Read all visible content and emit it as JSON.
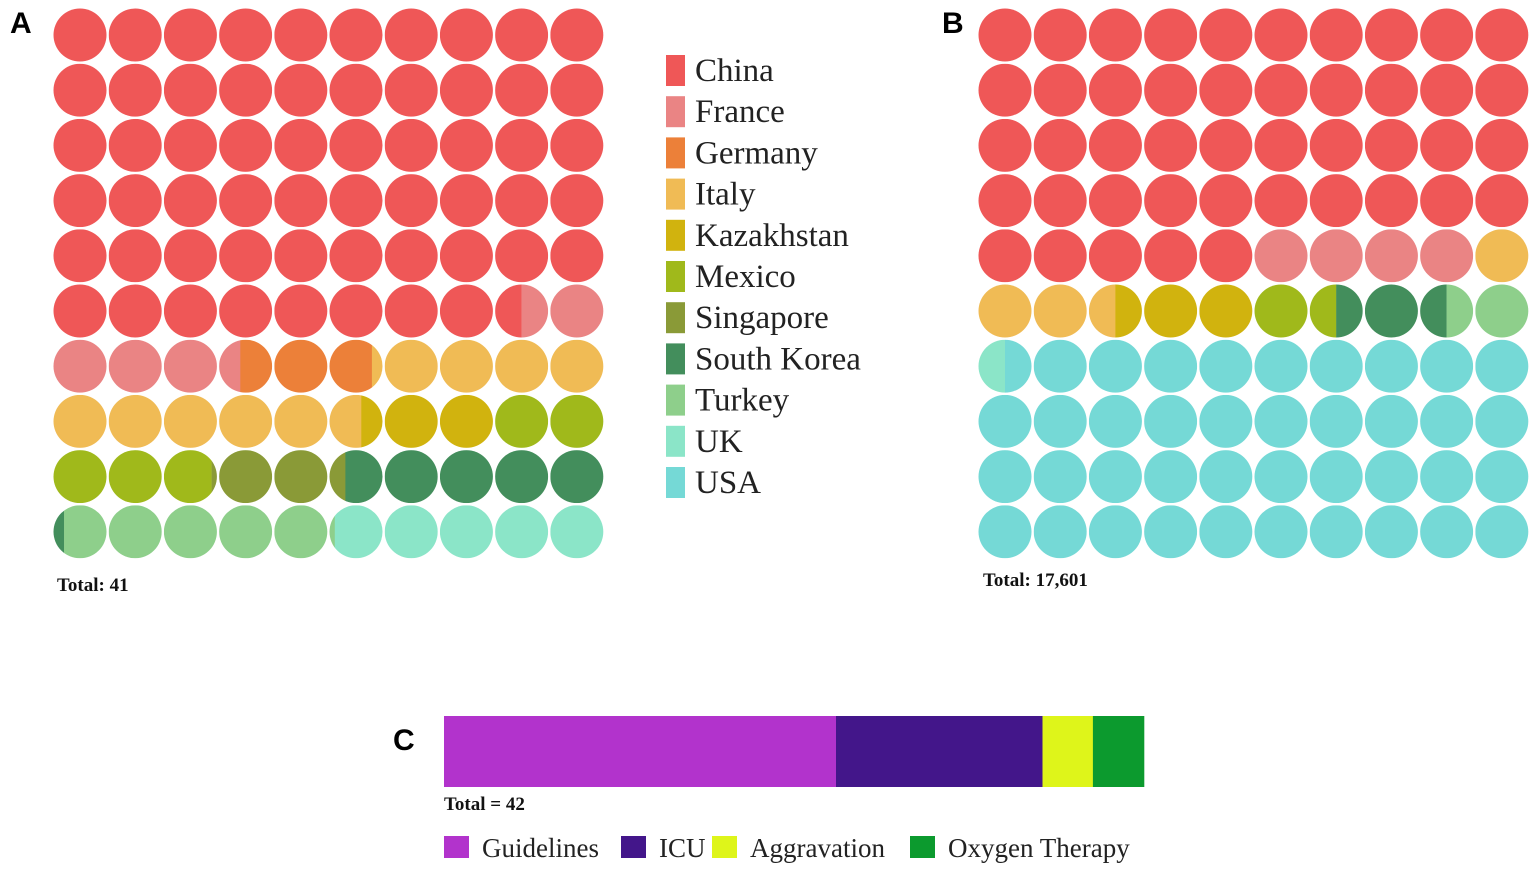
{
  "colors": {
    "China": "#ef5757",
    "France": "#ea8484",
    "Germany": "#ec8039",
    "Italy": "#f0bb55",
    "Kazakhstan": "#d1b30e",
    "Mexico": "#a0b91b",
    "Singapore": "#8a9a37",
    "South Korea": "#438e5c",
    "Turkey": "#8ecf8b",
    "UK": "#8be5c8",
    "USA": "#75d9d6"
  },
  "chart_data": [
    {
      "type": "waffle",
      "panel": "A",
      "total_label": "Total: 41",
      "grid": [
        10,
        10
      ],
      "unit": "percent",
      "categories": [
        "China",
        "France",
        "Germany",
        "Italy",
        "Kazakhstan",
        "Mexico",
        "Singapore",
        "South Korea",
        "Turkey",
        "UK",
        "USA"
      ],
      "values": [
        58.5,
        4.9,
        2.4,
        9.8,
        2.4,
        4.9,
        2.4,
        4.9,
        4.9,
        4.9,
        0
      ]
    },
    {
      "type": "waffle",
      "panel": "B",
      "total_label": "Total: 17,601",
      "grid": [
        10,
        10
      ],
      "unit": "percent",
      "categories": [
        "China",
        "France",
        "Germany",
        "Italy",
        "Kazakhstan",
        "Mexico",
        "Singapore",
        "South Korea",
        "Turkey",
        "UK",
        "USA"
      ],
      "values": [
        45,
        4,
        0,
        3.5,
        2.5,
        1.5,
        0,
        2,
        1.5,
        0.5,
        39.5
      ]
    },
    {
      "type": "bar",
      "stacked": true,
      "orientation": "horizontal",
      "panel": "C",
      "total_label": "Total = 42",
      "unit": "percent",
      "categories": [
        "Guidelines",
        "ICU",
        "Aggravation",
        "Oxygen Therapy"
      ],
      "values": [
        56,
        29.5,
        7.2,
        7.3
      ],
      "colors": [
        "#b233cc",
        "#43168a",
        "#def51a",
        "#0c9a2e"
      ]
    }
  ],
  "legend_ab": [
    "China",
    "France",
    "Germany",
    "Italy",
    "Kazakhstan",
    "Mexico",
    "Singapore",
    "South Korea",
    "Turkey",
    "UK",
    "USA"
  ],
  "legend_ab_placement": "between-panels-right-of-A"
}
